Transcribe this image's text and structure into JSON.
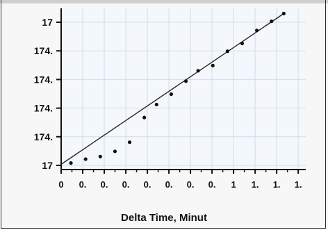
{
  "chart_data": {
    "type": "scatter",
    "title": "",
    "xlabel": "Delta  Time, Minut",
    "ylabel": "",
    "x_tick_labels": [
      "0",
      "0.",
      "0.",
      "0.",
      "0.",
      "0.",
      "0.",
      "0.",
      "1",
      "1.",
      "1.",
      "1."
    ],
    "y_tick_labels": [
      "17",
      "174.",
      "174.",
      "174.",
      "174.",
      "17"
    ],
    "series": [
      {
        "kind": "points",
        "x": [
          0.04,
          0.1,
          0.16,
          0.22,
          0.28,
          0.34,
          0.39,
          0.45,
          0.51,
          0.56,
          0.62,
          0.68,
          0.74,
          0.8,
          0.86,
          0.91
        ],
        "y": [
          0.01,
          0.04,
          0.06,
          0.1,
          0.17,
          0.36,
          0.46,
          0.54,
          0.64,
          0.72,
          0.76,
          0.87,
          0.93,
          1.03,
          1.1,
          1.16
        ]
      },
      {
        "kind": "fit-line",
        "x": [
          0.0,
          0.91
        ],
        "y": [
          0.0,
          1.16
        ]
      }
    ],
    "xlim": [
      0,
      1.0
    ],
    "ylim": [
      -0.04,
      1.2
    ],
    "grid": true,
    "grid_color": "#cfdff0",
    "axis_color": "#111111",
    "point_color": "#111111",
    "line_color": "#222222"
  }
}
